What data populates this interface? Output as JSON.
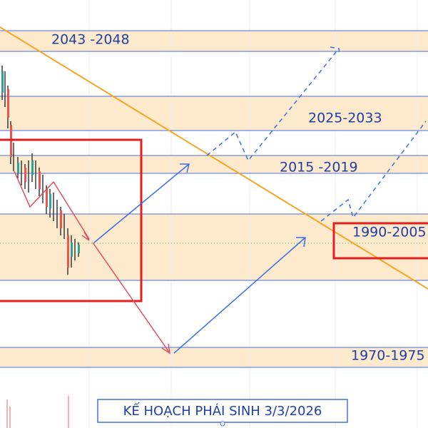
{
  "zones": [
    {
      "label": "2043 -2048"
    },
    {
      "label": "2025-2033"
    },
    {
      "label": "2015 -2019"
    },
    {
      "label": "1990-2005"
    },
    {
      "label": "1970-1975"
    }
  ],
  "title": "KẾ HOẠCH PHÁI SINH 3/3/2026"
}
